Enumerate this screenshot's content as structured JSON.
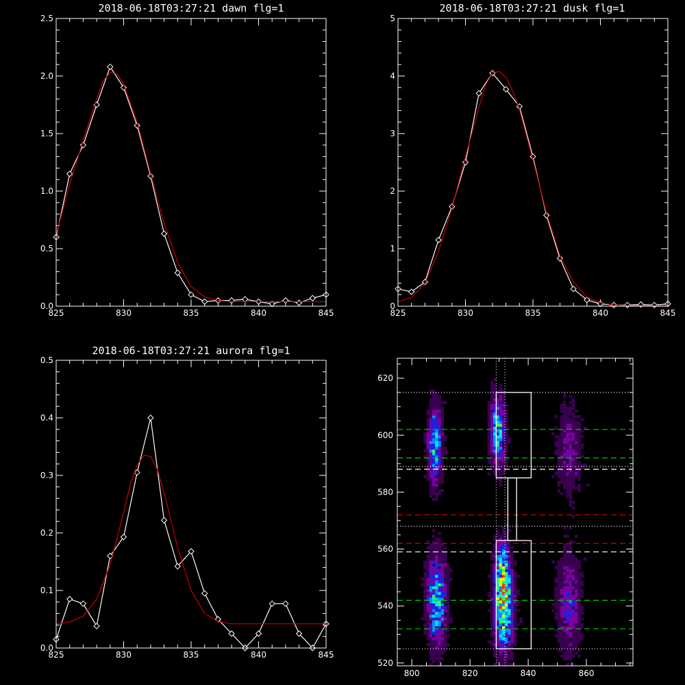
{
  "chart_data": [
    {
      "type": "line",
      "title": "2018-06-18T03:27:21 dawn flg=1",
      "xlim": [
        825,
        845
      ],
      "ylim": [
        0,
        2.5
      ],
      "xticks": [
        "825",
        "830",
        "835",
        "840",
        "845"
      ],
      "yticks": [
        "0.0",
        "0.5",
        "1.0",
        "1.5",
        "2.0",
        "2.5"
      ],
      "series": [
        {
          "color": "#ffffff",
          "marker": "diamond",
          "x": [
            825,
            826,
            827,
            828,
            829,
            830,
            831,
            832,
            833,
            834,
            835,
            836,
            837,
            838,
            839,
            840,
            841,
            842,
            843,
            844,
            845
          ],
          "y": [
            0.6,
            1.15,
            1.4,
            1.75,
            2.08,
            1.9,
            1.57,
            1.13,
            0.63,
            0.29,
            0.1,
            0.04,
            0.05,
            0.05,
            0.06,
            0.04,
            0.02,
            0.05,
            0.03,
            0.07,
            0.1
          ]
        },
        {
          "color": "#cc0000",
          "x": [
            825,
            826,
            827,
            828,
            828.5,
            829,
            829.5,
            830,
            831,
            832,
            833,
            834,
            835,
            836,
            837,
            838,
            840,
            842,
            845
          ],
          "y": [
            0.62,
            1.06,
            1.44,
            1.8,
            1.96,
            2.03,
            2.02,
            1.93,
            1.6,
            1.15,
            0.72,
            0.38,
            0.17,
            0.08,
            0.05,
            0.04,
            0.04,
            0.04,
            0.04
          ]
        }
      ]
    },
    {
      "type": "line",
      "title": "2018-06-18T03:27:21 dusk flg=1",
      "xlim": [
        825,
        845
      ],
      "ylim": [
        0,
        5
      ],
      "xticks": [
        "825",
        "830",
        "835",
        "840",
        "845"
      ],
      "yticks": [
        "0",
        "1",
        "2",
        "3",
        "4",
        "5"
      ],
      "series": [
        {
          "color": "#ffffff",
          "marker": "diamond",
          "x": [
            825,
            826,
            827,
            828,
            829,
            830,
            831,
            832,
            833,
            834,
            835,
            836,
            837,
            838,
            839,
            840,
            841,
            842,
            843,
            844,
            845
          ],
          "y": [
            0.3,
            0.25,
            0.42,
            1.15,
            1.73,
            2.5,
            3.7,
            4.05,
            3.77,
            3.47,
            2.6,
            1.58,
            0.83,
            0.3,
            0.11,
            0.04,
            0.02,
            0.02,
            0.03,
            0.02,
            0.04
          ]
        },
        {
          "color": "#cc0000",
          "x": [
            825,
            826,
            827,
            828,
            829,
            830,
            831,
            831.5,
            832,
            832.5,
            833,
            833.5,
            834,
            835,
            836,
            837,
            838,
            839,
            840,
            841,
            842,
            845
          ],
          "y": [
            0.08,
            0.15,
            0.4,
            0.95,
            1.7,
            2.6,
            3.45,
            3.85,
            4.05,
            4.08,
            3.98,
            3.74,
            3.42,
            2.55,
            1.62,
            0.88,
            0.42,
            0.16,
            0.06,
            0.02,
            0.01,
            0.01
          ]
        }
      ]
    },
    {
      "type": "line",
      "title": "2018-06-18T03:27:21 aurora flg=1",
      "xlim": [
        825,
        845
      ],
      "ylim": [
        0,
        0.5
      ],
      "xticks": [
        "825",
        "830",
        "835",
        "840",
        "845"
      ],
      "yticks": [
        "0.0",
        "0.1",
        "0.2",
        "0.3",
        "0.4",
        "0.5"
      ],
      "series": [
        {
          "color": "#ffffff",
          "marker": "diamond",
          "x": [
            825,
            826,
            827,
            828,
            829,
            830,
            831,
            832,
            833,
            834,
            835,
            836,
            837,
            838,
            839,
            840,
            841,
            842,
            843,
            844,
            845
          ],
          "y": [
            0.015,
            0.085,
            0.077,
            0.038,
            0.16,
            0.193,
            0.305,
            0.4,
            0.222,
            0.142,
            0.168,
            0.095,
            0.05,
            0.025,
            0.0,
            0.025,
            0.077,
            0.077,
            0.025,
            0.0,
            0.042
          ]
        },
        {
          "color": "#cc0000",
          "x": [
            825,
            826,
            827,
            828,
            829,
            830,
            830.5,
            831,
            831.5,
            832,
            832.5,
            833,
            834,
            835,
            836,
            837,
            838,
            840,
            845
          ],
          "y": [
            0.042,
            0.045,
            0.055,
            0.085,
            0.145,
            0.235,
            0.285,
            0.318,
            0.335,
            0.333,
            0.31,
            0.27,
            0.175,
            0.1,
            0.06,
            0.046,
            0.042,
            0.042,
            0.042
          ]
        }
      ]
    },
    {
      "type": "heatmap",
      "xlim": [
        795,
        876
      ],
      "ylim": [
        519,
        627
      ],
      "xticks": [
        "800",
        "820",
        "840",
        "860"
      ],
      "yticks": [
        "520",
        "540",
        "560",
        "580",
        "600",
        "620"
      ],
      "colormap": [
        "#000000",
        "#3a0050",
        "#7a00a0",
        "#2020e0",
        "#0090ff",
        "#00e8e8",
        "#30ff60",
        "#e8ff00",
        "#ff3000"
      ],
      "blobs": [
        {
          "x": 808,
          "y": 597,
          "sx": 1.6,
          "sy": 9,
          "amp": 0.55
        },
        {
          "x": 829.5,
          "y": 601,
          "sx": 1.7,
          "sy": 8,
          "amp": 0.6
        },
        {
          "x": 854,
          "y": 594,
          "sx": 2.8,
          "sy": 10,
          "amp": 0.22
        },
        {
          "x": 808.5,
          "y": 542,
          "sx": 2.2,
          "sy": 10,
          "amp": 0.62
        },
        {
          "x": 831.5,
          "y": 541,
          "sx": 2.1,
          "sy": 10,
          "amp": 0.92
        },
        {
          "x": 831,
          "y": 556,
          "sx": 1.4,
          "sy": 5,
          "amp": 0.35
        },
        {
          "x": 854,
          "y": 541,
          "sx": 2.6,
          "sy": 11,
          "amp": 0.32
        }
      ],
      "boxes": [
        {
          "x0": 829,
          "x1": 841,
          "y0": 585,
          "y1": 615
        },
        {
          "x0": 833,
          "x1": 836,
          "y0": 563,
          "y1": 585
        },
        {
          "x0": 829,
          "x1": 841,
          "y0": 525,
          "y1": 563
        }
      ],
      "vlines": [
        {
          "x": 829,
          "color": "#ffffff",
          "dash": "1,3"
        },
        {
          "x": 832,
          "color": "#ffffff",
          "dash": "1,3"
        }
      ],
      "hlines": [
        {
          "y": 615,
          "color": "#ffffff",
          "dash": "1,3"
        },
        {
          "y": 602,
          "color": "#00cc00",
          "dash": "8,5"
        },
        {
          "y": 592,
          "color": "#00cc00",
          "dash": "8,5"
        },
        {
          "y": 589,
          "color": "#ffffff",
          "dash": "1,3"
        },
        {
          "y": 588,
          "color": "#ffffff",
          "dash": "8,5"
        },
        {
          "y": 572,
          "color": "#cc0000",
          "dash": "8,5"
        },
        {
          "y": 568,
          "color": "#ffffff",
          "dash": "1,3"
        },
        {
          "y": 562,
          "color": "#cc0000",
          "dash": "8,5"
        },
        {
          "y": 559,
          "color": "#ffffff",
          "dash": "8,5"
        },
        {
          "y": 542,
          "color": "#00cc00",
          "dash": "8,5"
        },
        {
          "y": 532,
          "color": "#00cc00",
          "dash": "8,5"
        },
        {
          "y": 525,
          "color": "#ffffff",
          "dash": "1,3"
        }
      ]
    }
  ]
}
